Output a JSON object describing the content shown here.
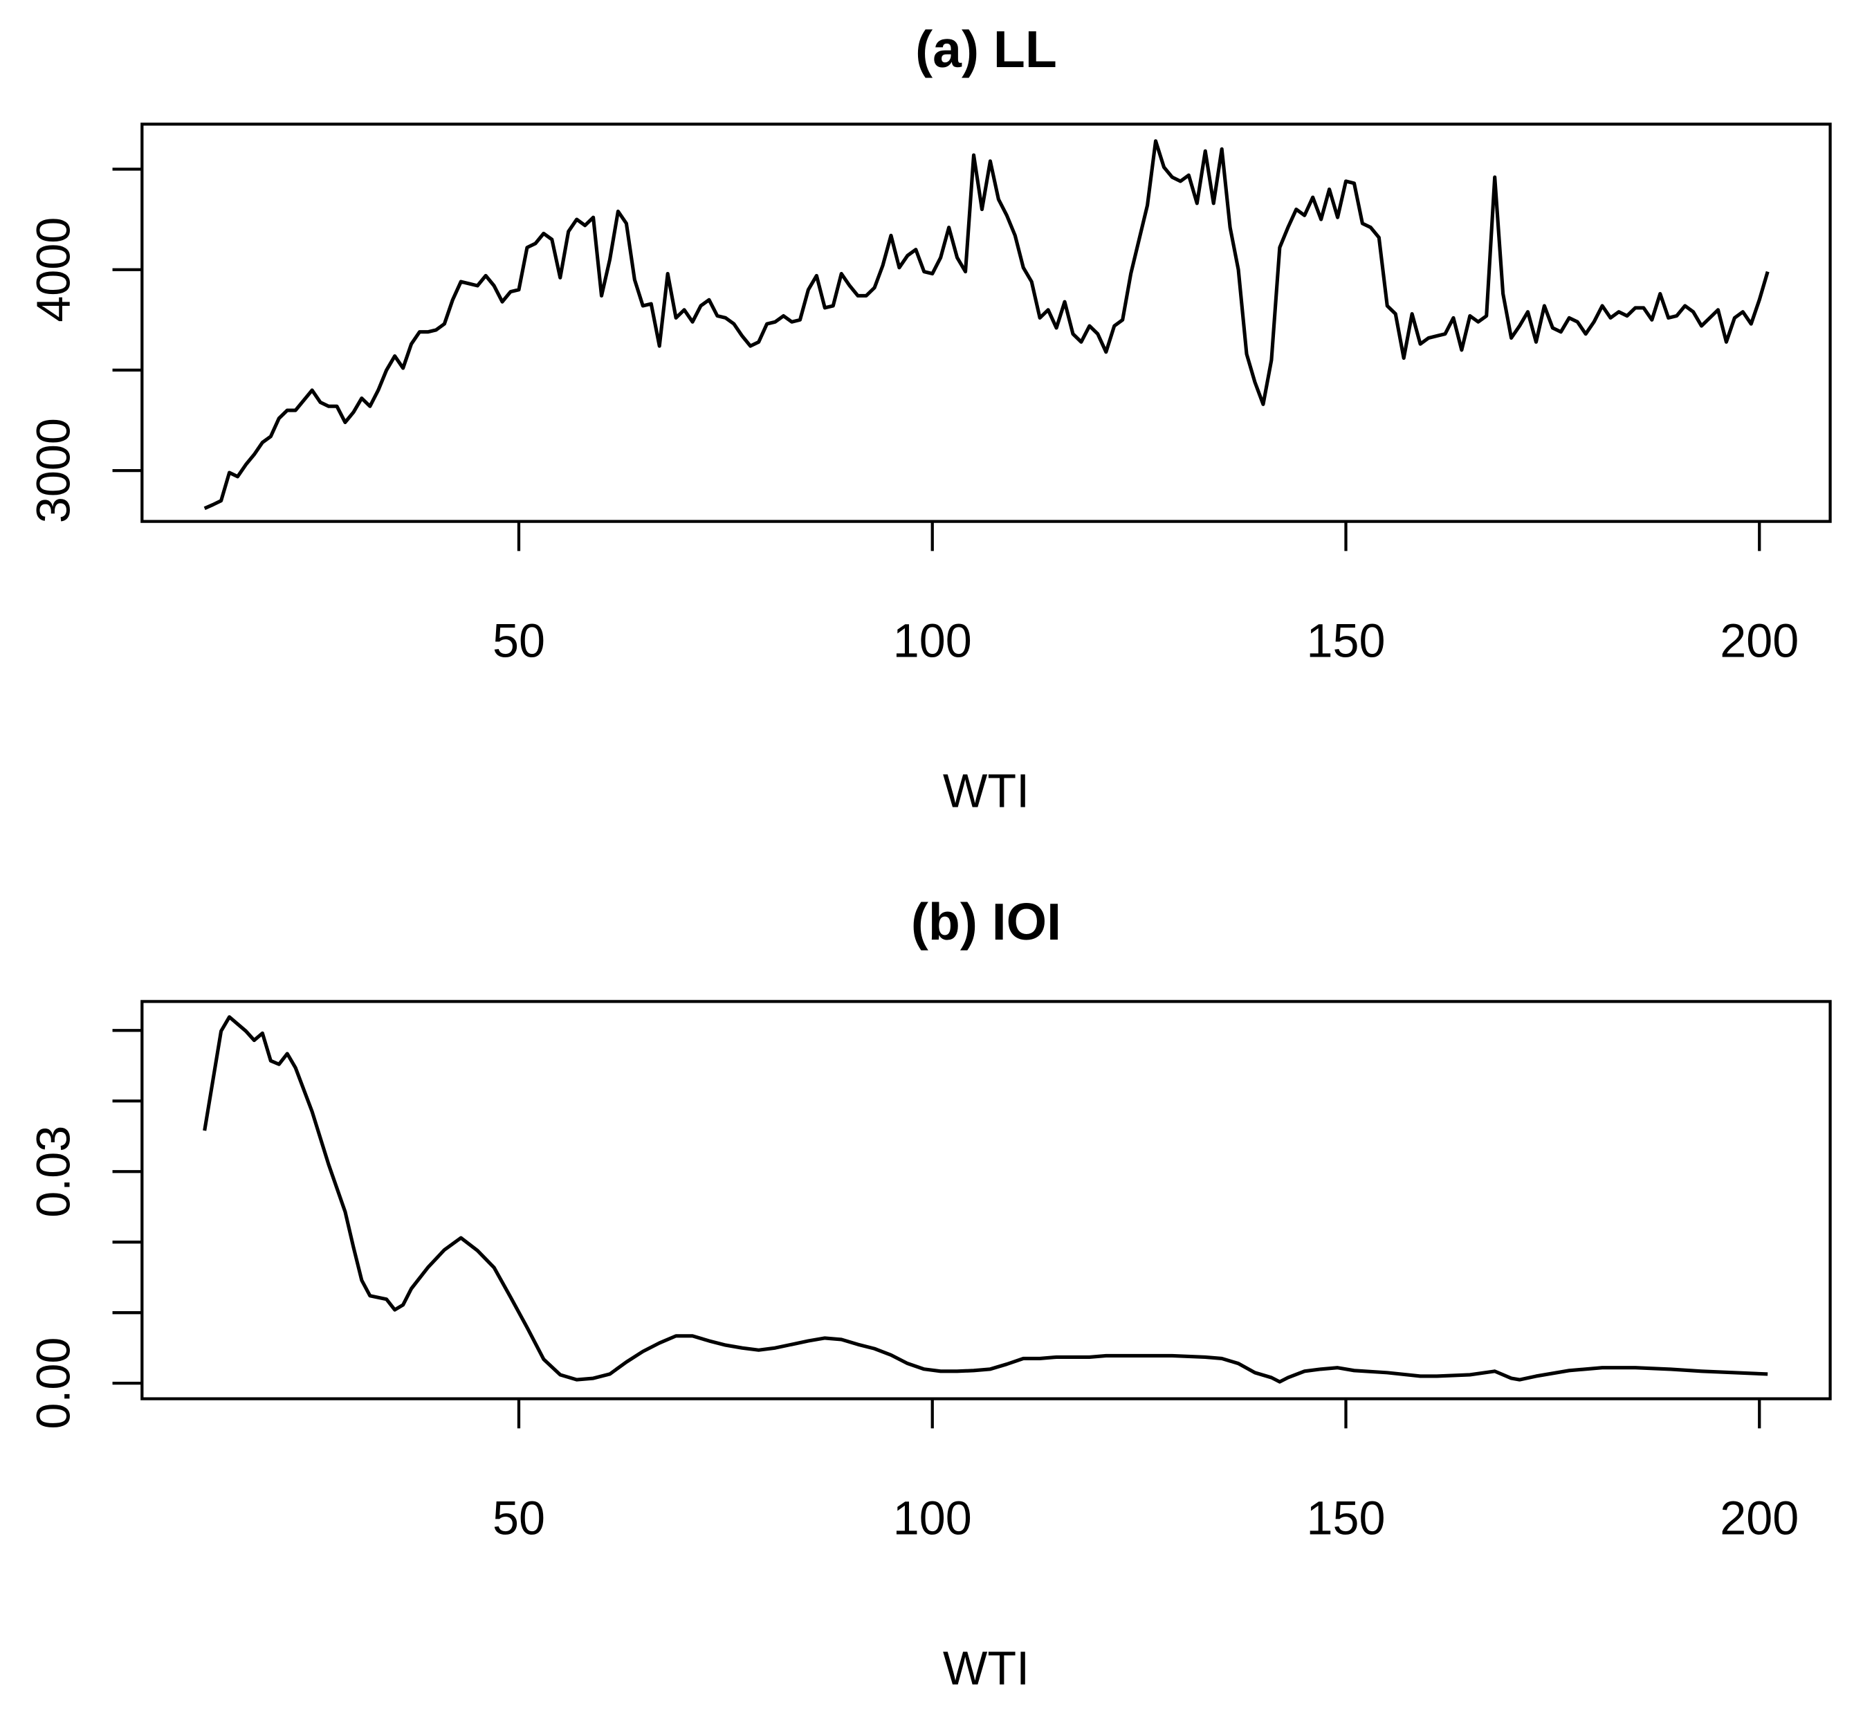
{
  "chart_data": [
    {
      "type": "line",
      "title": "(a) LL",
      "xlabel": "WTI",
      "color": "#000000",
      "xlim": [
        4.44,
        208.56
      ],
      "xticks": [
        50,
        100,
        150,
        200
      ],
      "ylim": [
        2747,
        4724
      ],
      "yticks": [
        3000,
        {
          "value": 3500,
          "label": null
        },
        4000,
        {
          "value": 4500,
          "label": null
        }
      ],
      "x": [
        12,
        13,
        14,
        15,
        16,
        17,
        18,
        19,
        20,
        21,
        22,
        23,
        24,
        25,
        26,
        27,
        28,
        29,
        30,
        31,
        32,
        33,
        34,
        35,
        36,
        37,
        38,
        39,
        40,
        41,
        42,
        43,
        44,
        45,
        46,
        47,
        48,
        49,
        50,
        51,
        52,
        53,
        54,
        55,
        56,
        57,
        58,
        59,
        60,
        61,
        62,
        63,
        64,
        65,
        66,
        67,
        68,
        69,
        70,
        71,
        72,
        73,
        74,
        75,
        76,
        77,
        78,
        79,
        80,
        81,
        82,
        83,
        84,
        85,
        86,
        87,
        88,
        89,
        90,
        91,
        92,
        93,
        94,
        95,
        96,
        97,
        98,
        99,
        100,
        101,
        102,
        103,
        104,
        105,
        106,
        107,
        108,
        109,
        110,
        111,
        112,
        113,
        114,
        115,
        116,
        117,
        118,
        119,
        120,
        121,
        122,
        123,
        124,
        125,
        126,
        127,
        128,
        129,
        130,
        131,
        132,
        133,
        134,
        135,
        136,
        137,
        138,
        139,
        140,
        141,
        142,
        143,
        144,
        145,
        146,
        147,
        148,
        149,
        150,
        151,
        152,
        153,
        154,
        155,
        156,
        157,
        158,
        159,
        160,
        161,
        162,
        163,
        164,
        165,
        166,
        167,
        168,
        169,
        170,
        171,
        172,
        173,
        174,
        175,
        176,
        177,
        178,
        179,
        180,
        181,
        182,
        183,
        184,
        185,
        186,
        187,
        188,
        189,
        190,
        191,
        192,
        193,
        194,
        195,
        196,
        197,
        198,
        199,
        200,
        201
      ],
      "values": [
        2812,
        2830,
        2850,
        2990,
        2970,
        3030,
        3080,
        3140,
        3170,
        3260,
        3300,
        3300,
        3350,
        3400,
        3340,
        3320,
        3320,
        3240,
        3290,
        3360,
        3320,
        3400,
        3500,
        3570,
        3510,
        3630,
        3690,
        3690,
        3700,
        3730,
        3850,
        3940,
        3930,
        3920,
        3970,
        3920,
        3840,
        3890,
        3900,
        4110,
        4130,
        4180,
        4150,
        3960,
        4190,
        4250,
        4220,
        4260,
        3870,
        4050,
        4290,
        4230,
        3950,
        3820,
        3830,
        3620,
        3980,
        3760,
        3800,
        3740,
        3820,
        3850,
        3770,
        3760,
        3730,
        3670,
        3620,
        3640,
        3730,
        3740,
        3770,
        3740,
        3750,
        3900,
        3970,
        3810,
        3820,
        3980,
        3920,
        3870,
        3870,
        3910,
        4020,
        4170,
        4010,
        4070,
        4100,
        3990,
        3980,
        4060,
        4210,
        4060,
        3990,
        4570,
        4300,
        4540,
        4350,
        4270,
        4170,
        4010,
        3940,
        3760,
        3800,
        3710,
        3840,
        3680,
        3640,
        3720,
        3680,
        3590,
        3720,
        3750,
        3980,
        4150,
        4320,
        4640,
        4510,
        4460,
        4440,
        4470,
        4330,
        4590,
        4330,
        4600,
        4210,
        4000,
        3580,
        3440,
        3330,
        3550,
        4110,
        4210,
        4300,
        4270,
        4360,
        4250,
        4400,
        4260,
        4440,
        4430,
        4230,
        4210,
        4160,
        3820,
        3780,
        3560,
        3780,
        3630,
        3660,
        3670,
        3680,
        3760,
        3600,
        3770,
        3740,
        3770,
        4460,
        3880,
        3660,
        3720,
        3790,
        3640,
        3820,
        3710,
        3690,
        3760,
        3740,
        3680,
        3740,
        3820,
        3760,
        3790,
        3770,
        3810,
        3810,
        3750,
        3880,
        3760,
        3770,
        3820,
        3790,
        3720,
        3760,
        3800,
        3640,
        3760,
        3790,
        3730,
        3850,
        3990
      ]
    },
    {
      "type": "line",
      "title": "(b) IOI",
      "xlabel": "WTI",
      "color": "#000000",
      "xlim": [
        4.44,
        208.56
      ],
      "xticks": [
        50,
        100,
        150,
        200
      ],
      "ylim": [
        -0.0022,
        0.0541
      ],
      "yticks": [
        {
          "value": 0,
          "label": "0.00"
        },
        {
          "value": 0.01,
          "label": null
        },
        {
          "value": 0.02,
          "label": null
        },
        {
          "value": 0.03,
          "label": "0.03"
        },
        {
          "value": 0.04,
          "label": null
        },
        {
          "value": 0.05,
          "label": null
        }
      ],
      "x": [
        12,
        14,
        15,
        17,
        18,
        19,
        20,
        21,
        22,
        23,
        25,
        27,
        29,
        30,
        31,
        32,
        34,
        35,
        36,
        37,
        39,
        41,
        43,
        45,
        47,
        49,
        51,
        53,
        55,
        57,
        59,
        61,
        63,
        65,
        67,
        69,
        71,
        73,
        75,
        77,
        79,
        81,
        83,
        85,
        87,
        89,
        91,
        93,
        95,
        97,
        99,
        101,
        103,
        105,
        107,
        109,
        111,
        113,
        115,
        117,
        119,
        121,
        125,
        129,
        133,
        135,
        137,
        139,
        141,
        142,
        143,
        145,
        147,
        149,
        151,
        155,
        159,
        161,
        165,
        168,
        170,
        171,
        173,
        177,
        181,
        185,
        189,
        193,
        201
      ],
      "values": [
        0.0358,
        0.0499,
        0.0519,
        0.0499,
        0.0486,
        0.0496,
        0.0457,
        0.0452,
        0.0467,
        0.0447,
        0.0385,
        0.031,
        0.0243,
        0.0193,
        0.0146,
        0.0124,
        0.0119,
        0.0104,
        0.0111,
        0.0134,
        0.0164,
        0.0189,
        0.0206,
        0.0188,
        0.0164,
        0.0122,
        0.0079,
        0.0034,
        0.0012,
        0.0005,
        0.0007,
        0.0013,
        0.003,
        0.0045,
        0.0057,
        0.0067,
        0.0067,
        0.006,
        0.0054,
        0.005,
        0.0047,
        0.005,
        0.0055,
        0.006,
        0.0064,
        0.0062,
        0.0055,
        0.0049,
        0.004,
        0.0028,
        0.002,
        0.0017,
        0.0017,
        0.0018,
        0.002,
        0.0027,
        0.0035,
        0.0035,
        0.0037,
        0.0037,
        0.0037,
        0.0039,
        0.0039,
        0.0039,
        0.0037,
        0.0035,
        0.0028,
        0.0015,
        0.0008,
        0.0002,
        0.0008,
        0.0017,
        0.002,
        0.0022,
        0.0018,
        0.0015,
        0.001,
        0.001,
        0.0012,
        0.0017,
        0.0007,
        0.0005,
        0.001,
        0.0018,
        0.0022,
        0.0022,
        0.002,
        0.0017,
        0.0013
      ]
    }
  ]
}
